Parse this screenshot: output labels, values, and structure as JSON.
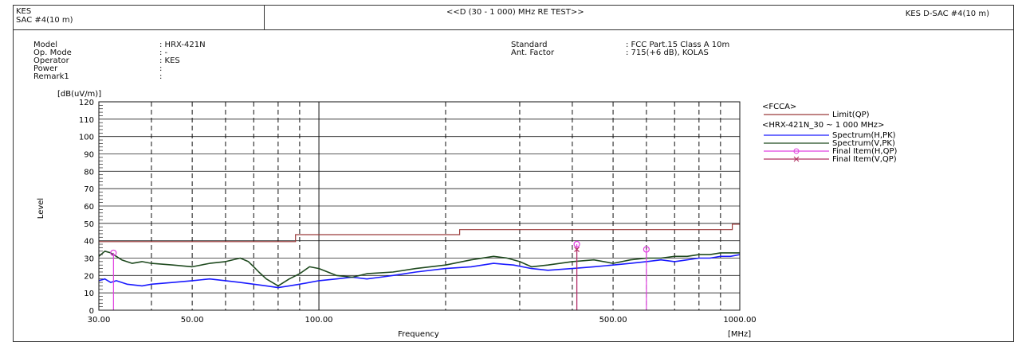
{
  "header": {
    "left_line1": "KES",
    "left_line2": "SAC #4(10 m)",
    "center": "<<D (30 - 1 000) MHz RE TEST>>",
    "right": "KES D-SAC #4(10 m)"
  },
  "info_left": {
    "labels": [
      "Model",
      "Op. Mode",
      "Operator",
      "Power",
      "Remark1"
    ],
    "values": [
      ": HRX-421N",
      ": -",
      ": KES",
      ":",
      ":"
    ]
  },
  "info_right": {
    "labels": [
      "Standard",
      "Ant. Factor"
    ],
    "values": [
      ": FCC Part.15 Class A 10m",
      ": 715(+6 dB), KOLAS"
    ]
  },
  "legend": {
    "group1": "<FCCA>",
    "group2": "<HRX-421N_30 ~ 1 000 MHz>",
    "items": [
      {
        "label": "Limit(QP)",
        "color": "#9b3a3a",
        "marker": "none"
      },
      {
        "label": "Spectrum(H,PK)",
        "color": "#1a1aff",
        "marker": "none"
      },
      {
        "label": "Spectrum(V,PK)",
        "color": "#1f4a1f",
        "marker": "none"
      },
      {
        "label": "Final Item(H,QP)",
        "color": "#e040e0",
        "marker": "o"
      },
      {
        "label": "Final Item(V,QP)",
        "color": "#b03060",
        "marker": "x"
      }
    ]
  },
  "chart_data": {
    "type": "line",
    "title": "",
    "xlabel": "Frequency",
    "xunit": "[MHz]",
    "ylabel": "Level",
    "yunit": "[dB(uV/m)]",
    "x_scale": "log",
    "xlim": [
      30,
      1000
    ],
    "ylim": [
      0,
      120
    ],
    "y_ticks": [
      0,
      10,
      20,
      30,
      40,
      50,
      60,
      70,
      80,
      90,
      100,
      110,
      120
    ],
    "x_tick_labels": [
      {
        "value": 30,
        "label": "30.00"
      },
      {
        "value": 50,
        "label": "50.00"
      },
      {
        "value": 100,
        "label": "100.00"
      },
      {
        "value": 500,
        "label": "500.00"
      },
      {
        "value": 1000,
        "label": "1000.00"
      }
    ],
    "x_minor_gridlines": [
      40,
      50,
      60,
      70,
      80,
      90,
      200,
      300,
      400,
      500,
      600,
      700,
      800,
      900
    ],
    "x_major_gridlines": [
      100
    ],
    "grid": true,
    "limit_line": {
      "name": "Limit(QP)",
      "points": [
        [
          30,
          39.5
        ],
        [
          88,
          39.5
        ],
        [
          88,
          43.5
        ],
        [
          216,
          43.5
        ],
        [
          216,
          46.4
        ],
        [
          960,
          46.4
        ],
        [
          960,
          49.5
        ],
        [
          1000,
          49.5
        ]
      ]
    },
    "series": [
      {
        "name": "Spectrum(H,PK)",
        "x": [
          30,
          31,
          32,
          33,
          35,
          38,
          40,
          45,
          50,
          55,
          60,
          65,
          70,
          75,
          80,
          85,
          90,
          95,
          100,
          110,
          120,
          130,
          140,
          150,
          170,
          200,
          230,
          260,
          290,
          320,
          350,
          400,
          450,
          500,
          550,
          600,
          650,
          700,
          750,
          800,
          850,
          900,
          950,
          1000
        ],
        "y": [
          17,
          18,
          16,
          17,
          15,
          14,
          15,
          16,
          17,
          18,
          17,
          16,
          15,
          14,
          13,
          14,
          15,
          16,
          17,
          18,
          19,
          18,
          19,
          20,
          22,
          24,
          25,
          27,
          26,
          24,
          23,
          24,
          25,
          26,
          27,
          28,
          29,
          28,
          29,
          30,
          30,
          31,
          31,
          32
        ]
      },
      {
        "name": "Spectrum(V,PK)",
        "x": [
          30,
          31,
          32,
          33,
          34,
          36,
          38,
          40,
          45,
          50,
          55,
          60,
          65,
          68,
          70,
          72,
          75,
          80,
          85,
          90,
          95,
          100,
          110,
          120,
          130,
          150,
          170,
          200,
          230,
          260,
          280,
          300,
          320,
          350,
          400,
          450,
          500,
          550,
          600,
          650,
          700,
          750,
          800,
          850,
          900,
          950,
          1000
        ],
        "y": [
          31,
          34,
          33,
          31,
          29,
          27,
          28,
          27,
          26,
          25,
          27,
          28,
          30,
          28,
          25,
          22,
          18,
          14,
          18,
          21,
          25,
          24,
          20,
          19,
          21,
          22,
          24,
          26,
          29,
          31,
          30,
          28,
          25,
          26,
          28,
          29,
          27,
          29,
          30,
          30,
          31,
          31,
          32,
          32,
          33,
          33,
          33
        ]
      }
    ],
    "final_items": [
      {
        "name": "Final Item(H,QP)",
        "freq": 32.5,
        "level": 33,
        "marker": "o"
      },
      {
        "name": "Final Item(H,QP)",
        "freq": 410,
        "level": 38,
        "marker": "o"
      },
      {
        "name": "Final Item(V,QP)",
        "freq": 410,
        "level": 35,
        "marker": "x"
      },
      {
        "name": "Final Item(H,QP)",
        "freq": 600,
        "level": 35,
        "marker": "o"
      }
    ]
  }
}
